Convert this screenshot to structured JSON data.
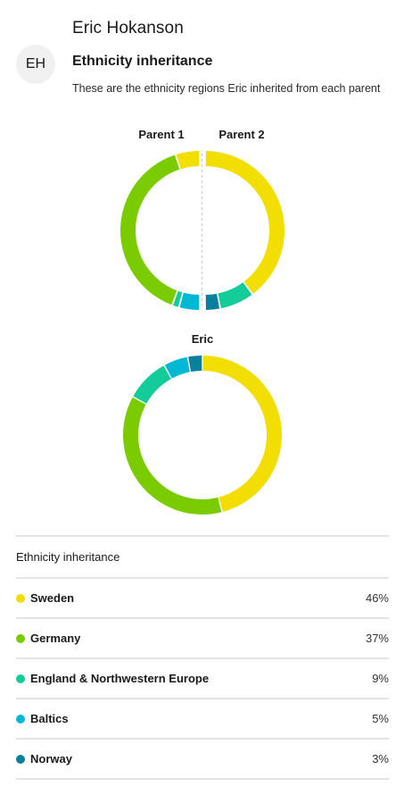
{
  "profile": {
    "name": "Eric Hokanson",
    "initials": "EH",
    "section_title": "Ethnicity inheritance",
    "description": "These are the ethnicity regions Eric inherited from each parent"
  },
  "colors": {
    "Sweden": "#f2de00",
    "Germany": "#7acc00",
    "England & Northwestern Europe": "#14cc99",
    "Baltics": "#00b8d4",
    "Norway": "#087f9c"
  },
  "chart_data": [
    {
      "type": "pie",
      "title": "Parent 1",
      "categories": [
        "Sweden",
        "Germany",
        "England & Northwestern Europe",
        "Baltics"
      ],
      "values": [
        7,
        56,
        2,
        6
      ]
    },
    {
      "type": "pie",
      "title": "Parent 2",
      "categories": [
        "Sweden",
        "England & Northwestern Europe",
        "Norway"
      ],
      "values": [
        39,
        7,
        3
      ]
    },
    {
      "type": "pie",
      "title": "Eric",
      "categories": [
        "Sweden",
        "Germany",
        "England & Northwestern Europe",
        "Baltics",
        "Norway"
      ],
      "values": [
        46,
        37,
        9,
        5,
        3
      ]
    }
  ],
  "table": {
    "header": "Ethnicity inheritance",
    "rows": [
      {
        "region": "Sweden",
        "percent": "46%"
      },
      {
        "region": "Germany",
        "percent": "37%"
      },
      {
        "region": "England & Northwestern Europe",
        "percent": "9%"
      },
      {
        "region": "Baltics",
        "percent": "5%"
      },
      {
        "region": "Norway",
        "percent": "3%"
      }
    ]
  }
}
